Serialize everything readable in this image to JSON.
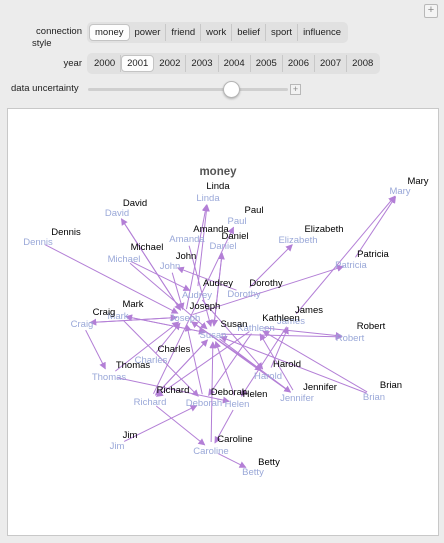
{
  "controls": {
    "connection_style_label_line1": "connection",
    "connection_style_label_line2": "style",
    "connection_options": [
      "money",
      "power",
      "friend",
      "work",
      "belief",
      "sport",
      "influence"
    ],
    "connection_selected": "money",
    "year_label": "year",
    "year_options": [
      "2000",
      "2001",
      "2002",
      "2003",
      "2004",
      "2005",
      "2006",
      "2007",
      "2008"
    ],
    "year_selected": "2001",
    "uncertainty_label": "data uncertainty",
    "uncertainty_value": 0.72
  },
  "graph": {
    "title": "money",
    "colors": {
      "node_2001": "#000000",
      "node_2000": "#9aa8d8",
      "edge": "#b37fd6"
    },
    "nodes": [
      {
        "name": "Mary",
        "cur": [
          410,
          75
        ],
        "prev": [
          392,
          85
        ]
      },
      {
        "name": "Linda",
        "cur": [
          210,
          80
        ],
        "prev": [
          200,
          92
        ]
      },
      {
        "name": "David",
        "cur": [
          127,
          97
        ],
        "prev": [
          109,
          107
        ]
      },
      {
        "name": "Paul",
        "cur": [
          246,
          104
        ],
        "prev": [
          229,
          115
        ]
      },
      {
        "name": "Elizabeth",
        "cur": [
          316,
          123
        ],
        "prev": [
          290,
          134
        ]
      },
      {
        "name": "Dennis",
        "cur": [
          58,
          126
        ],
        "prev": [
          30,
          136
        ]
      },
      {
        "name": "Amanda",
        "cur": [
          203,
          123
        ],
        "prev": [
          179,
          133
        ]
      },
      {
        "name": "Daniel",
        "cur": [
          227,
          130
        ],
        "prev": [
          215,
          140
        ]
      },
      {
        "name": "Patricia",
        "cur": [
          365,
          148
        ],
        "prev": [
          343,
          159
        ]
      },
      {
        "name": "Michael",
        "cur": [
          139,
          141
        ],
        "prev": [
          116,
          153
        ]
      },
      {
        "name": "John",
        "cur": [
          178,
          150
        ],
        "prev": [
          162,
          160
        ]
      },
      {
        "name": "Audrey",
        "cur": [
          210,
          177
        ],
        "prev": [
          189,
          189
        ]
      },
      {
        "name": "Dorothy",
        "cur": [
          258,
          177
        ],
        "prev": [
          236,
          188
        ]
      },
      {
        "name": "Mark",
        "cur": [
          125,
          198
        ],
        "prev": [
          110,
          210
        ]
      },
      {
        "name": "Joseph",
        "cur": [
          197,
          200
        ],
        "prev": [
          177,
          212
        ]
      },
      {
        "name": "James",
        "cur": [
          301,
          204
        ],
        "prev": [
          283,
          215
        ]
      },
      {
        "name": "Craig",
        "cur": [
          96,
          206
        ],
        "prev": [
          74,
          218
        ]
      },
      {
        "name": "Kathleen",
        "cur": [
          273,
          212
        ],
        "prev": [
          248,
          222
        ]
      },
      {
        "name": "Susan",
        "cur": [
          226,
          218
        ],
        "prev": [
          205,
          229
        ]
      },
      {
        "name": "Robert",
        "cur": [
          363,
          220
        ],
        "prev": [
          342,
          232
        ]
      },
      {
        "name": "Charles",
        "cur": [
          166,
          243
        ],
        "prev": [
          143,
          254
        ]
      },
      {
        "name": "Thomas",
        "cur": [
          125,
          259
        ],
        "prev": [
          101,
          271
        ]
      },
      {
        "name": "Harold",
        "cur": [
          279,
          258
        ],
        "prev": [
          260,
          270
        ]
      },
      {
        "name": "Richard",
        "cur": [
          165,
          284
        ],
        "prev": [
          142,
          296
        ]
      },
      {
        "name": "Jennifer",
        "cur": [
          312,
          281
        ],
        "prev": [
          289,
          292
        ]
      },
      {
        "name": "Brian",
        "cur": [
          383,
          279
        ],
        "prev": [
          366,
          291
        ]
      },
      {
        "name": "Deborah",
        "cur": [
          221,
          286
        ],
        "prev": [
          196,
          297
        ]
      },
      {
        "name": "Helen",
        "cur": [
          247,
          288
        ],
        "prev": [
          229,
          298
        ]
      },
      {
        "name": "Jim",
        "cur": [
          122,
          329
        ],
        "prev": [
          109,
          340
        ]
      },
      {
        "name": "Caroline",
        "cur": [
          227,
          333
        ],
        "prev": [
          203,
          345
        ]
      },
      {
        "name": "Betty",
        "cur": [
          261,
          356
        ],
        "prev": [
          245,
          366
        ]
      }
    ],
    "edges": [
      [
        "Patricia",
        "Mary"
      ],
      [
        "James",
        "Mary"
      ],
      [
        "Dennis",
        "Joseph"
      ],
      [
        "David",
        "Joseph"
      ],
      [
        "Joseph",
        "David"
      ],
      [
        "Michael",
        "Susan"
      ],
      [
        "Amanda",
        "Susan"
      ],
      [
        "John",
        "Joseph"
      ],
      [
        "Audrey",
        "Linda"
      ],
      [
        "Joseph",
        "Linda"
      ],
      [
        "Dorothy",
        "Elizabeth"
      ],
      [
        "Daniel",
        "Susan"
      ],
      [
        "Susan",
        "Daniel"
      ],
      [
        "Joseph",
        "Patricia"
      ],
      [
        "Mark",
        "Susan"
      ],
      [
        "Craig",
        "Joseph"
      ],
      [
        "Joseph",
        "Craig"
      ],
      [
        "Kathleen",
        "Robert"
      ],
      [
        "Susan",
        "Robert"
      ],
      [
        "Charles",
        "Joseph"
      ],
      [
        "Thomas",
        "Joseph"
      ],
      [
        "Richard",
        "Susan"
      ],
      [
        "Susan",
        "Richard"
      ],
      [
        "Jennifer",
        "Kathleen"
      ],
      [
        "Brian",
        "Kathleen"
      ],
      [
        "Deborah",
        "Joseph"
      ],
      [
        "Helen",
        "Susan"
      ],
      [
        "Harold",
        "James"
      ],
      [
        "Jim",
        "Deborah"
      ],
      [
        "Caroline",
        "Susan"
      ],
      [
        "Caroline",
        "Betty"
      ],
      [
        "Helen",
        "Caroline"
      ],
      [
        "Richard",
        "Caroline"
      ],
      [
        "Susan",
        "Jennifer"
      ],
      [
        "James",
        "Helen"
      ],
      [
        "Thomas",
        "Helen"
      ],
      [
        "Kathleen",
        "Richard"
      ],
      [
        "Joseph",
        "Harold"
      ],
      [
        "Audrey",
        "Harold"
      ],
      [
        "Brian",
        "Susan"
      ],
      [
        "Michael",
        "Audrey"
      ],
      [
        "Dorothy",
        "John"
      ],
      [
        "Jennifer",
        "Joseph"
      ],
      [
        "Richard",
        "Paul"
      ],
      [
        "Mark",
        "Deborah"
      ],
      [
        "Craig",
        "Thomas"
      ],
      [
        "Susan",
        "Mark"
      ],
      [
        "Kathleen",
        "Deborah"
      ]
    ]
  }
}
